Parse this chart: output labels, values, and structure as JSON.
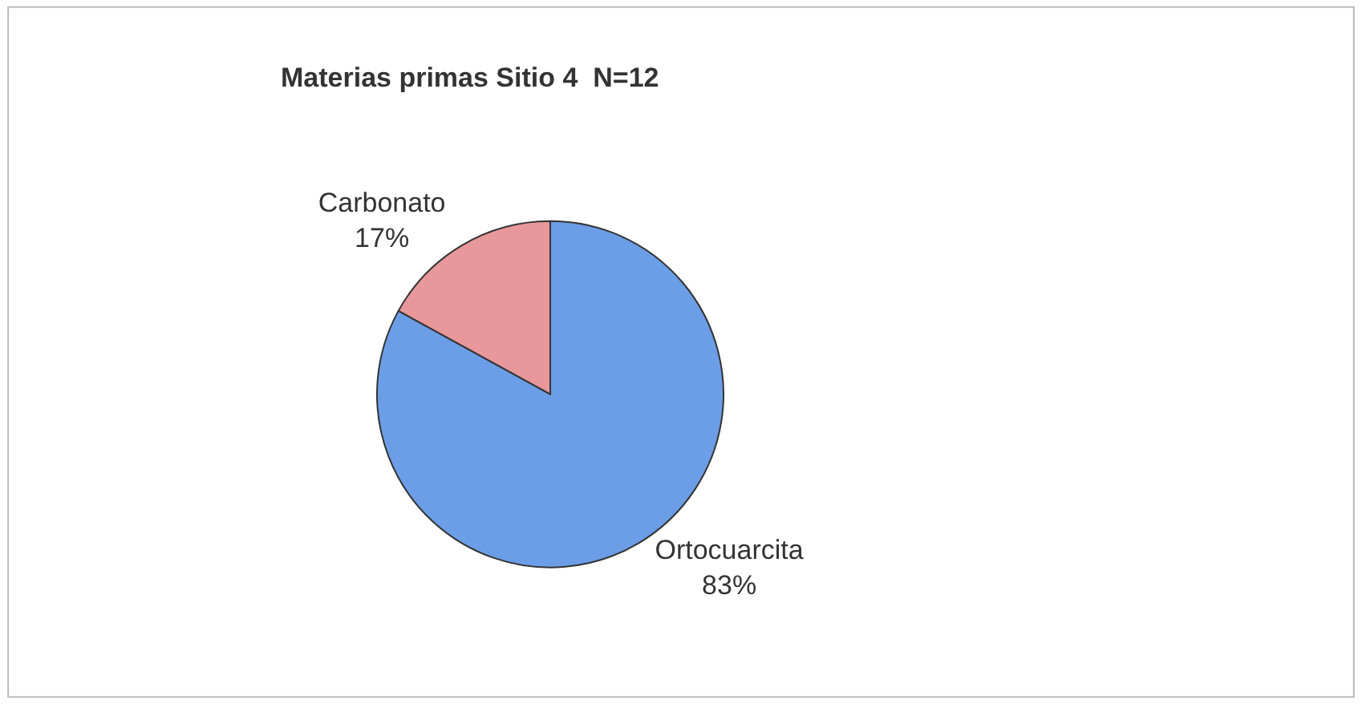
{
  "chart_data": {
    "type": "pie",
    "title": "Materias primas Sitio 4  N=12",
    "categories": [
      "Ortocuarcita",
      "Carbonato"
    ],
    "values": [
      83,
      17
    ],
    "value_labels": [
      "83%",
      "17%"
    ],
    "colors": [
      "#6b9ee6",
      "#e8979a"
    ],
    "legend": false
  }
}
